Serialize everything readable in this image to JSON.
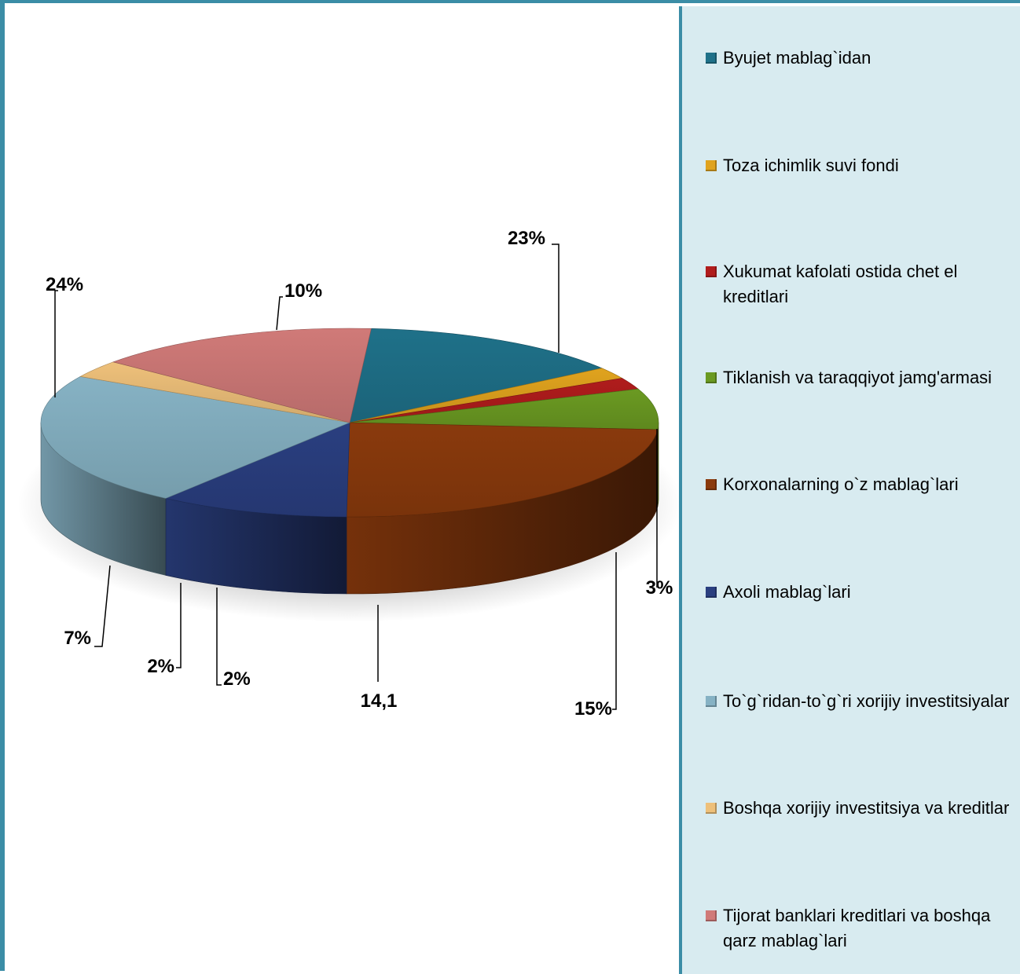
{
  "chart_data": {
    "type": "pie",
    "style": "3d-exploded-none",
    "legend_position": "right",
    "categories": [
      "Byujet mablag`idan",
      "Toza ichimlik suvi fondi",
      "Xukumat kafolati ostida chet el kreditlari",
      "Tiklanish va taraqqiyot jamg'armasi",
      "Korxonalarning o`z mablag`lari",
      "Axoli mablag`lari",
      "To`g`ridan-to`g`ri xorijiy investitsiyalar",
      "Boshqa xorijiy investitsiya va kreditlar",
      "Tijorat banklari kreditlari va boshqa qarz mablag`lari"
    ],
    "values": [
      14.1,
      2,
      2,
      7,
      24,
      10,
      23,
      3,
      15
    ],
    "data_labels": [
      "14,1",
      "2%",
      "2%",
      "7%",
      "24%",
      "10%",
      "23%",
      "3%",
      "15%"
    ],
    "colors": [
      "#1f7189",
      "#e0a31e",
      "#b01c1c",
      "#6b9a22",
      "#8a3a0d",
      "#2a3f80",
      "#86b2c4",
      "#eec07a",
      "#d07a78"
    ]
  }
}
